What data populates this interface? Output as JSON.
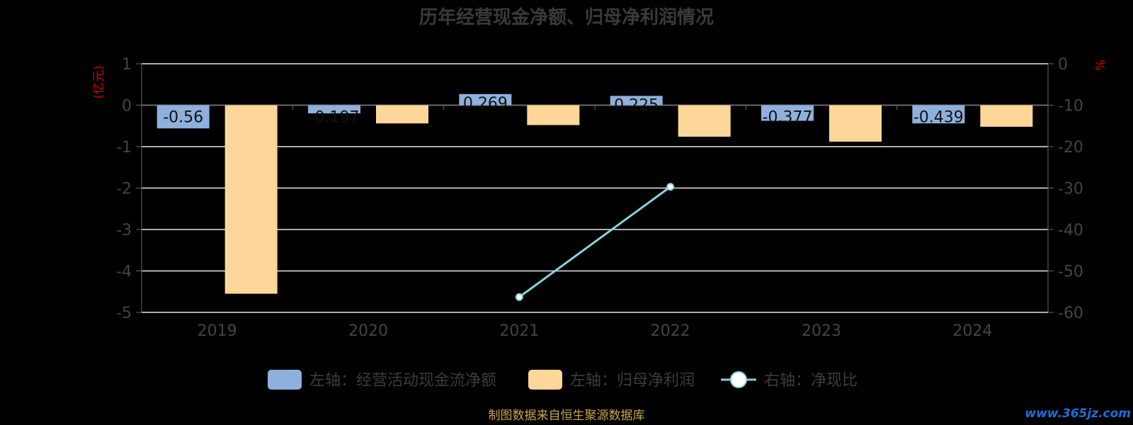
{
  "chart_data": {
    "type": "bar",
    "title": "历年经营现金净额、归母净利润情况",
    "categories": [
      "2019",
      "2020",
      "2021",
      "2022",
      "2023",
      "2024"
    ],
    "left_axis": {
      "unit": "(亿元)",
      "ylim": [
        -5,
        1
      ],
      "ticks": [
        1,
        0,
        -1,
        -2,
        -3,
        -4,
        -5
      ]
    },
    "right_axis": {
      "unit": "%",
      "ylim": [
        -60,
        0
      ],
      "ticks": [
        0,
        -10,
        -20,
        -30,
        -40,
        -50,
        -60
      ]
    },
    "series": [
      {
        "name": "左轴：经营活动现金流净额",
        "type": "bar",
        "axis": "left",
        "color": "#8eb0dc",
        "values": [
          -0.56,
          -0.197,
          0.269,
          0.225,
          -0.377,
          -0.439
        ],
        "labels": [
          "-0.56",
          "-0.197",
          "0.269",
          "0.225",
          "-0.377",
          "-0.439"
        ]
      },
      {
        "name": "左轴：归母净利润",
        "type": "bar",
        "axis": "left",
        "color": "#fdd699",
        "values": [
          -4.55,
          -0.44,
          -0.48,
          -0.76,
          -0.88,
          -0.52
        ]
      },
      {
        "name": "右轴：净现比",
        "type": "line",
        "axis": "right",
        "color": "#86d3dc",
        "values": [
          null,
          null,
          -56.3,
          -29.7,
          null,
          null
        ]
      }
    ],
    "grid": true,
    "legend": "bottom"
  },
  "source_note": "制图数据来自恒生聚源数据库",
  "watermark": "www.365jz.com"
}
